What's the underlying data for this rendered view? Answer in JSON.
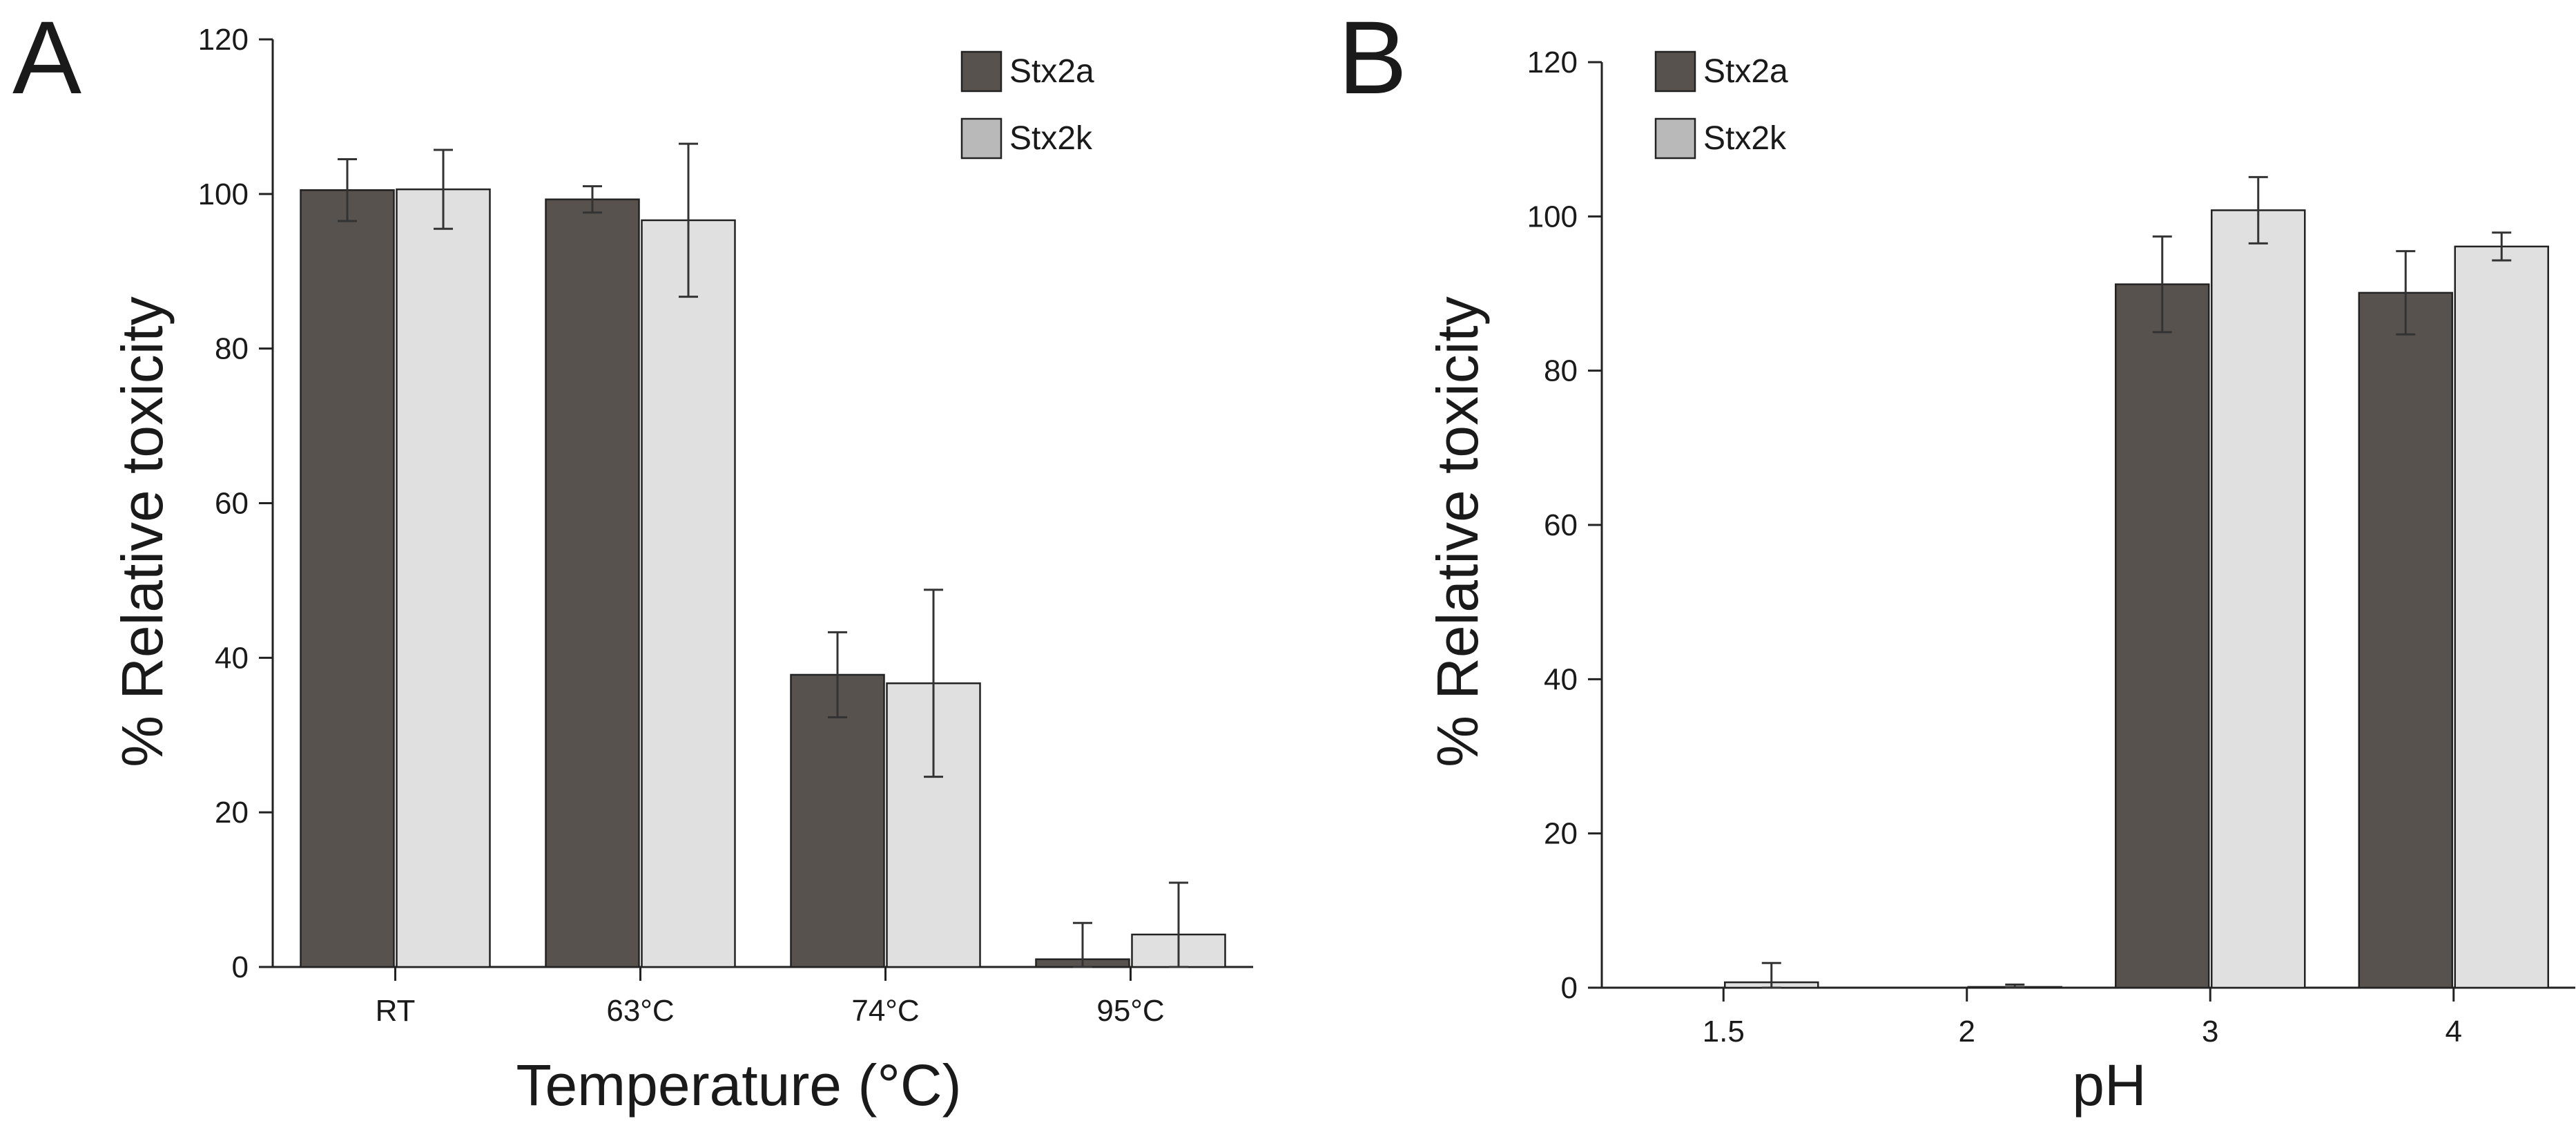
{
  "colors": {
    "series_a": "#58524f",
    "series_b": "#e0e0e0",
    "legend_b": "#b9b9b9",
    "axis": "#222222"
  },
  "chart_data": [
    {
      "type": "bar",
      "panel": "A",
      "xlabel": "Temperature (°C)",
      "ylabel": "% Relative toxicity",
      "ylim": [
        0,
        120
      ],
      "yticks": [
        0,
        20,
        40,
        60,
        80,
        100,
        120
      ],
      "categories": [
        "RT",
        "63°C",
        "74°C",
        "95°C"
      ],
      "series": [
        {
          "name": "Stx2a",
          "values": [
            100.5,
            99.3,
            37.8,
            1.0
          ],
          "errors": [
            4.0,
            1.7,
            5.5,
            4.7
          ]
        },
        {
          "name": "Stx2k",
          "values": [
            100.6,
            96.6,
            36.7,
            4.2
          ],
          "errors": [
            5.1,
            9.9,
            12.1,
            6.7
          ]
        }
      ],
      "legend_position": "top-right",
      "grid": false
    },
    {
      "type": "bar",
      "panel": "B",
      "xlabel": "pH",
      "ylabel": "% Relative toxicity",
      "ylim": [
        0,
        120
      ],
      "yticks": [
        0,
        20,
        40,
        60,
        80,
        100,
        120
      ],
      "categories": [
        "1.5",
        "2",
        "3",
        "4"
      ],
      "series": [
        {
          "name": "Stx2a",
          "values": [
            0,
            0,
            91.2,
            90.1
          ],
          "errors": [
            0,
            0,
            6.2,
            5.4
          ]
        },
        {
          "name": "Stx2k",
          "values": [
            0.7,
            0.1,
            100.8,
            96.1
          ],
          "errors": [
            2.5,
            0.3,
            4.3,
            1.8
          ]
        }
      ],
      "legend_position": "top-left",
      "grid": false
    }
  ]
}
